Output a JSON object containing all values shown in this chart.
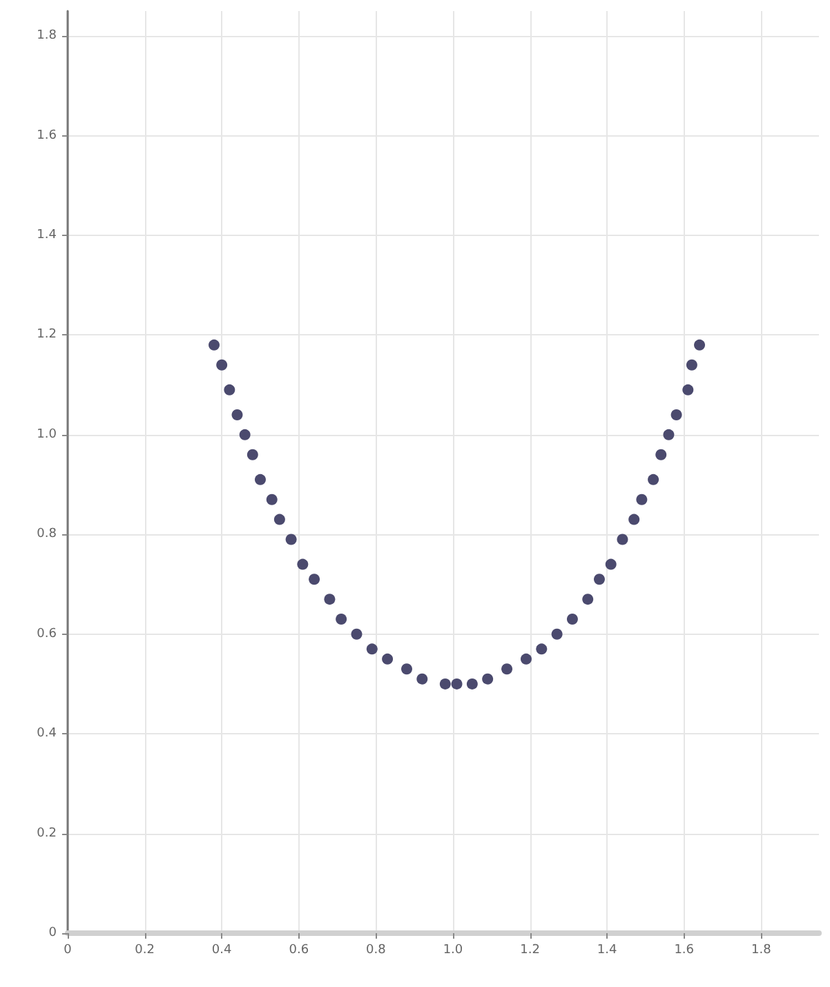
{
  "chart_data": {
    "type": "scatter",
    "x": [
      0.38,
      0.4,
      0.42,
      0.44,
      0.46,
      0.48,
      0.5,
      0.53,
      0.55,
      0.58,
      0.61,
      0.64,
      0.68,
      0.71,
      0.75,
      0.79,
      0.83,
      0.88,
      0.92,
      0.98,
      1.01,
      1.05,
      1.09,
      1.14,
      1.19,
      1.23,
      1.27,
      1.31,
      1.35,
      1.38,
      1.41,
      1.44,
      1.47,
      1.49,
      1.52,
      1.54,
      1.56,
      1.58,
      1.61,
      1.62,
      1.64
    ],
    "values": [
      1.18,
      1.14,
      1.09,
      1.04,
      1.0,
      0.96,
      0.91,
      0.87,
      0.83,
      0.79,
      0.74,
      0.71,
      0.67,
      0.63,
      0.6,
      0.57,
      0.55,
      0.53,
      0.51,
      0.5,
      0.5,
      0.5,
      0.51,
      0.53,
      0.55,
      0.57,
      0.6,
      0.63,
      0.67,
      0.71,
      0.74,
      0.79,
      0.83,
      0.87,
      0.91,
      0.96,
      1.0,
      1.04,
      1.09,
      1.14,
      1.18
    ],
    "color": "#4b4a6e",
    "marker": "circle",
    "xlim": [
      0,
      1.95
    ],
    "xticks": [
      0,
      0.2,
      0.4,
      0.6,
      0.8,
      {
        "value": 1,
        "label": "1.0"
      },
      1.2,
      1.4,
      1.6,
      1.8
    ],
    "ylim": [
      0,
      1.85
    ],
    "yticks": [
      0,
      0.2,
      0.4,
      0.6,
      0.8,
      {
        "value": 1,
        "label": "1.0"
      },
      1.2,
      1.4,
      1.6,
      1.8
    ],
    "grid": true
  }
}
